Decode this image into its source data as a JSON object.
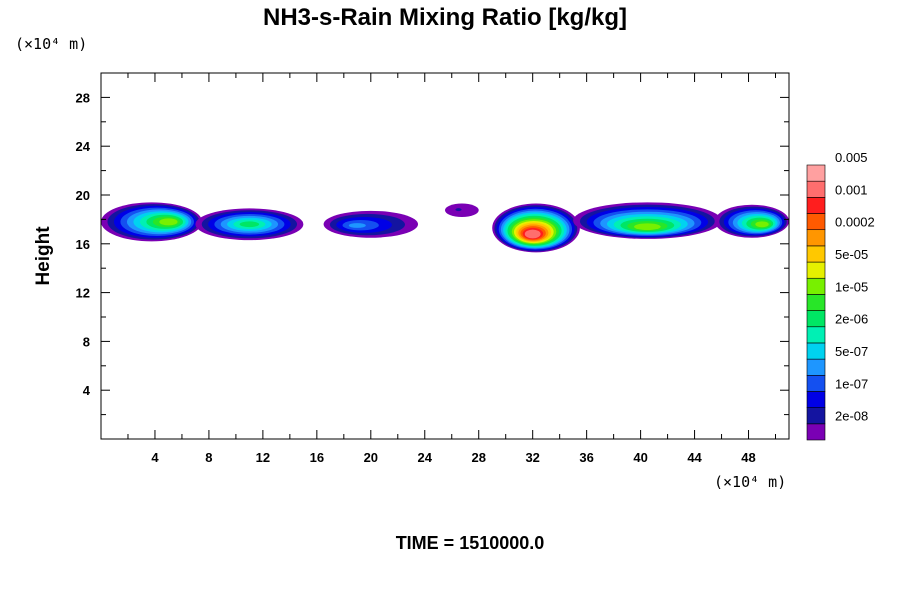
{
  "chart_data": {
    "type": "heatmap",
    "title": "NH3-s-Rain Mixing Ratio [kg/kg]",
    "ylabel": "Height",
    "x_unit": "(×10⁴ m)",
    "y_unit": "(×10⁴ m)",
    "xlim": [
      0,
      51
    ],
    "ylim": [
      0,
      30
    ],
    "x_ticks": [
      4,
      8,
      12,
      16,
      20,
      24,
      28,
      32,
      36,
      40,
      44,
      48
    ],
    "x_tick_labels": [
      "4",
      "8",
      "12",
      "16",
      "20",
      "24",
      "28",
      "32",
      "36",
      "40",
      "44",
      "48"
    ],
    "y_ticks": [
      4,
      8,
      12,
      16,
      20,
      24,
      28
    ],
    "y_tick_labels": [
      "4",
      "8",
      "12",
      "16",
      "20",
      "24",
      "28"
    ],
    "time_label": "TIME = 1510000.0",
    "colorbar": {
      "colors": [
        "#7a00b4",
        "#1414a0",
        "#0000e6",
        "#1450f0",
        "#1e96ff",
        "#00d2f0",
        "#00f0b4",
        "#00e664",
        "#28e628",
        "#78f000",
        "#e6f000",
        "#ffc800",
        "#ff9600",
        "#ff5a00",
        "#ff1e1e",
        "#ff6e6e",
        "#ffa0a0"
      ],
      "labels": [
        "2e-08",
        "1e-07",
        "5e-07",
        "2e-06",
        "1e-05",
        "5e-05",
        "0.0002",
        "0.001",
        "0.005"
      ]
    },
    "features": [
      {
        "x0": 0.0,
        "x1": 7.5,
        "y0": 16.2,
        "y1": 19.4,
        "peak_level": 9,
        "core_x": 5.0,
        "core_y": 17.8
      },
      {
        "x0": 7.0,
        "x1": 15.0,
        "y0": 16.3,
        "y1": 18.9,
        "peak_level": 7,
        "core_x": 11.0,
        "core_y": 17.6
      },
      {
        "x0": 16.5,
        "x1": 23.5,
        "y0": 16.5,
        "y1": 18.7,
        "peak_level": 4,
        "core_x": 19.0,
        "core_y": 17.5
      },
      {
        "x0": 25.5,
        "x1": 28.0,
        "y0": 18.2,
        "y1": 19.3,
        "peak_level": 1,
        "core_x": 26.5,
        "core_y": 18.8
      },
      {
        "x0": 29.0,
        "x1": 35.5,
        "y0": 15.3,
        "y1": 19.3,
        "peak_level": 15,
        "core_x": 32.0,
        "core_y": 16.8
      },
      {
        "x0": 35.0,
        "x1": 46.0,
        "y0": 16.4,
        "y1": 19.4,
        "peak_level": 9,
        "core_x": 40.5,
        "core_y": 17.4
      },
      {
        "x0": 45.5,
        "x1": 51.0,
        "y0": 16.5,
        "y1": 19.2,
        "peak_level": 9,
        "core_x": 49.0,
        "core_y": 17.6
      }
    ]
  }
}
